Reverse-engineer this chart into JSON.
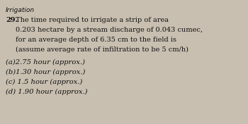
{
  "title": "Irrigation",
  "question_number": "29.",
  "q_line1": " The time required to irrigate a strip of area",
  "q_line2": "     0.203 hectare by a stream discharge of 0.043 cumec,",
  "q_line3": "     for an average depth of 6.35 cm to the field is",
  "q_line4": "     (assume average rate of infiltration to be 5 cm/h)",
  "options": [
    "(a)2.75 hour (approx.)",
    "(b)1.30 hour (approx.)",
    "(c) 1.5 hour (approx.)",
    "(d) 1.90 hour (approx.)"
  ],
  "bg_color": "#c8bfb0",
  "text_color": "#111111",
  "title_fontsize": 6.5,
  "question_fontsize": 7.0,
  "option_fontsize": 7.2
}
